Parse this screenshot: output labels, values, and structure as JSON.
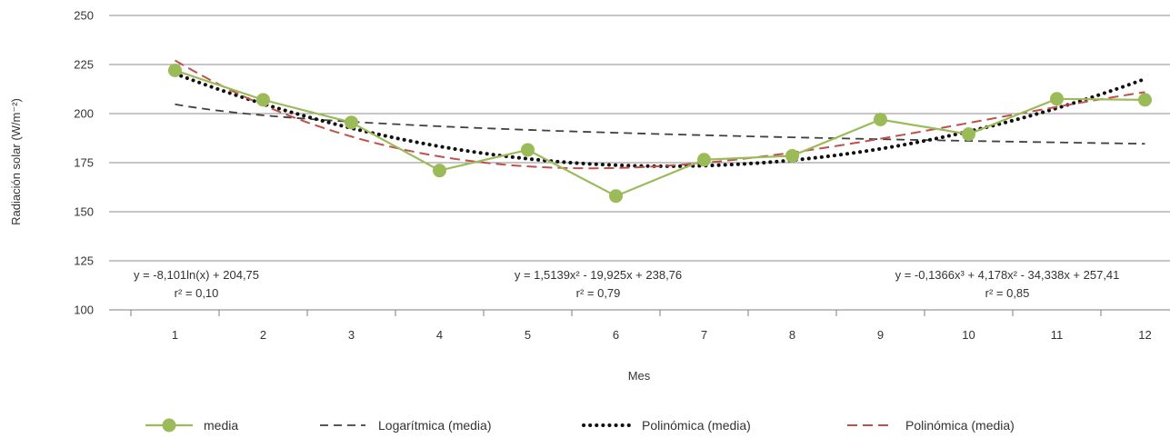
{
  "chart_data": {
    "type": "line",
    "xlabel": "Mes",
    "ylabel": "Radiación solar (W/m⁻²)",
    "ylim": [
      100,
      250
    ],
    "yticks": [
      100,
      125,
      150,
      175,
      200,
      225,
      250
    ],
    "categories": [
      "1",
      "2",
      "3",
      "4",
      "5",
      "6",
      "7",
      "8",
      "9",
      "10",
      "11",
      "12"
    ],
    "grid": "horizontal",
    "legend_position": "bottom",
    "series": [
      {
        "name": "media",
        "kind": "data",
        "color": "#9bbb59",
        "values": [
          222,
          207,
          195.5,
          171,
          181.5,
          158,
          176.5,
          178.5,
          197,
          189.5,
          207.5,
          207
        ]
      },
      {
        "name": "Logarítmica (media)",
        "kind": "trend-log",
        "color": "#404040",
        "coefficients": {
          "a": -8.101,
          "b": 204.75
        }
      },
      {
        "name": "Polinómica (media)",
        "kind": "trend-poly2",
        "color": "#111111",
        "coefficients": [
          238.76,
          -19.925,
          1.5139
        ]
      },
      {
        "name": "Polinómica (media)",
        "kind": "trend-poly3",
        "color": "#c0504d",
        "coefficients": [
          257.41,
          -34.338,
          4.178,
          -0.1366
        ]
      }
    ],
    "annotations": [
      {
        "equation": "y = -8,101ln(x) + 204,75",
        "r2": "r² = 0,10"
      },
      {
        "equation": "y = 1,5139x² - 19,925x + 238,76",
        "r2": "r² = 0,79"
      },
      {
        "equation": "y = -0,1366x³ + 4,178x² - 34,338x + 257,41",
        "r2": "r² = 0,85"
      }
    ]
  }
}
